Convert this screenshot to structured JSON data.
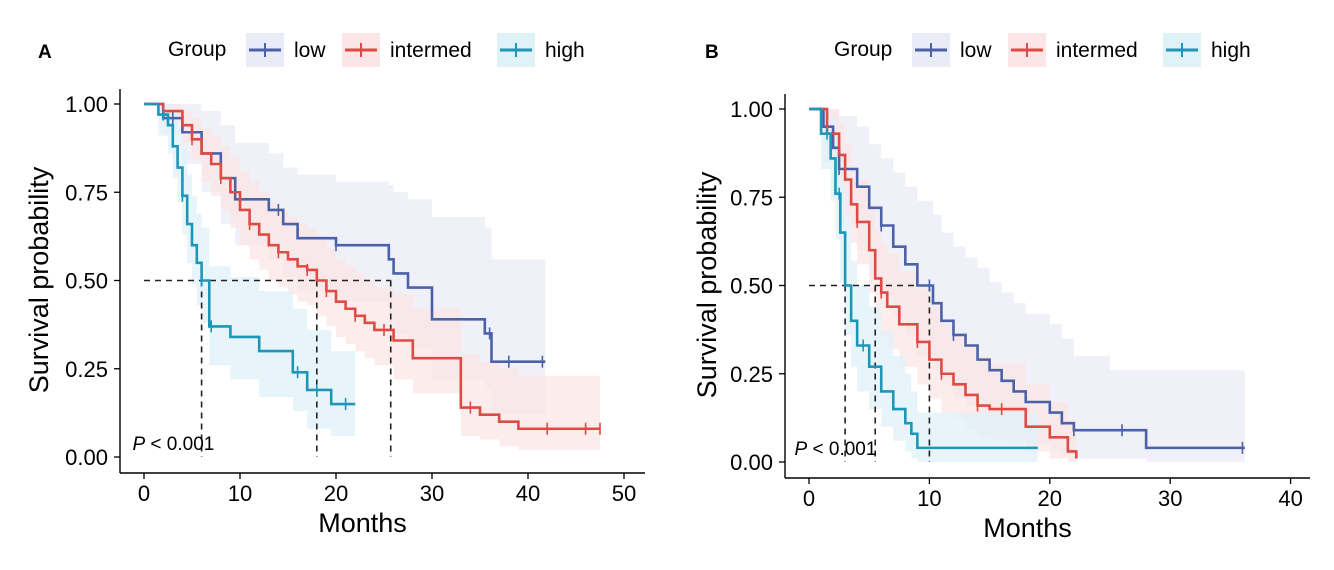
{
  "colors": {
    "low": "#4b62a8",
    "intermed": "#de4b44",
    "high": "#1e96b8",
    "low_band": "#e9ebf6",
    "intermed_band": "#fbe5e6",
    "high_band": "#dff2f8"
  },
  "chart_data": [
    {
      "type": "line",
      "panel_label": "A",
      "legend_title": "Group",
      "legend": [
        "low",
        "intermed",
        "high"
      ],
      "xlabel": "Months",
      "ylabel": "Survival probability",
      "xlim": [
        0,
        50
      ],
      "ylim": [
        0,
        1
      ],
      "xticks": [
        "0",
        "10",
        "20",
        "30",
        "40",
        "50"
      ],
      "yticks": [
        "0.00",
        "0.25",
        "0.50",
        "0.75",
        "1.00"
      ],
      "annotation": "P < 0.001",
      "medians": [
        6,
        18,
        25.7
      ],
      "series": [
        {
          "name": "low",
          "x": [
            0,
            2,
            4,
            6,
            8,
            9.5,
            13,
            14.5,
            16,
            20,
            25.5,
            26,
            27.5,
            30,
            35.5,
            36.2,
            41.8
          ],
          "y": [
            1,
            0.96,
            0.92,
            0.86,
            0.79,
            0.73,
            0.7,
            0.66,
            0.62,
            0.6,
            0.56,
            0.52,
            0.48,
            0.39,
            0.35,
            0.27,
            0.27
          ],
          "lower": [
            1,
            0.92,
            0.83,
            0.75,
            0.66,
            0.6,
            0.56,
            0.51,
            0.47,
            0.44,
            0.38,
            0.35,
            0.31,
            0.22,
            0.19,
            0.12,
            0.12
          ],
          "upper": [
            1,
            1,
            1,
            0.98,
            0.94,
            0.89,
            0.86,
            0.82,
            0.8,
            0.78,
            0.77,
            0.75,
            0.73,
            0.68,
            0.65,
            0.56,
            0.56
          ],
          "censor_x": [
            3,
            10,
            14,
            20,
            36,
            38,
            41.5
          ]
        },
        {
          "name": "intermed",
          "x": [
            0,
            2,
            4,
            5,
            6,
            7,
            8,
            9,
            10,
            11,
            12,
            13,
            14,
            15,
            16,
            17,
            18,
            19,
            20,
            21,
            22,
            23,
            24,
            26,
            28,
            33,
            35,
            37,
            39,
            47.5
          ],
          "y": [
            1,
            0.98,
            0.94,
            0.9,
            0.86,
            0.83,
            0.79,
            0.75,
            0.7,
            0.66,
            0.63,
            0.6,
            0.58,
            0.56,
            0.54,
            0.53,
            0.5,
            0.47,
            0.44,
            0.42,
            0.4,
            0.38,
            0.36,
            0.33,
            0.28,
            0.14,
            0.12,
            0.1,
            0.08,
            0.08
          ],
          "lower": [
            1,
            0.95,
            0.89,
            0.84,
            0.78,
            0.74,
            0.7,
            0.65,
            0.6,
            0.56,
            0.53,
            0.5,
            0.48,
            0.46,
            0.44,
            0.43,
            0.4,
            0.37,
            0.34,
            0.32,
            0.3,
            0.28,
            0.26,
            0.22,
            0.18,
            0.06,
            0.05,
            0.03,
            0.02,
            0.02
          ],
          "upper": [
            1,
            1,
            0.98,
            0.96,
            0.93,
            0.91,
            0.88,
            0.85,
            0.81,
            0.78,
            0.75,
            0.72,
            0.7,
            0.68,
            0.66,
            0.65,
            0.62,
            0.59,
            0.56,
            0.54,
            0.52,
            0.5,
            0.48,
            0.46,
            0.42,
            0.29,
            0.27,
            0.25,
            0.23,
            0.23
          ],
          "censor_x": [
            5,
            8,
            11,
            14,
            17,
            19,
            22,
            25,
            34,
            42,
            46,
            47.5
          ]
        },
        {
          "name": "high",
          "x": [
            0,
            1.5,
            2.5,
            3,
            3.5,
            4,
            4.5,
            5,
            5.5,
            6,
            6.8,
            9,
            12,
            15.5,
            17,
            19.5,
            22
          ],
          "y": [
            1,
            0.97,
            0.94,
            0.88,
            0.82,
            0.74,
            0.66,
            0.6,
            0.55,
            0.5,
            0.37,
            0.34,
            0.3,
            0.24,
            0.19,
            0.15,
            0.15
          ],
          "lower": [
            1,
            0.91,
            0.86,
            0.79,
            0.72,
            0.63,
            0.55,
            0.49,
            0.43,
            0.38,
            0.26,
            0.22,
            0.17,
            0.13,
            0.08,
            0.06,
            0.06
          ],
          "upper": [
            1,
            1,
            1,
            0.98,
            0.93,
            0.87,
            0.8,
            0.74,
            0.69,
            0.65,
            0.54,
            0.51,
            0.47,
            0.42,
            0.36,
            0.3,
            0.3
          ],
          "censor_x": [
            2,
            4,
            6,
            7,
            16,
            18,
            21
          ]
        }
      ]
    },
    {
      "type": "line",
      "panel_label": "B",
      "legend_title": "Group",
      "legend": [
        "low",
        "intermed",
        "high"
      ],
      "xlabel": "Months",
      "ylabel": "Survival probability",
      "xlim": [
        0,
        40
      ],
      "ylim": [
        0,
        1
      ],
      "xticks": [
        "0",
        "10",
        "20",
        "30",
        "40"
      ],
      "yticks": [
        "0.00",
        "0.25",
        "0.50",
        "0.75",
        "1.00"
      ],
      "annotation": "P < 0.001",
      "medians": [
        3,
        5.5,
        10
      ],
      "series": [
        {
          "name": "low",
          "x": [
            0,
            1.2,
            2,
            2.5,
            3,
            4,
            5,
            6,
            7,
            8,
            9,
            10,
            10.3,
            11,
            12,
            13,
            14,
            15,
            16,
            17,
            18,
            20,
            21,
            22,
            25,
            28,
            36.2
          ],
          "y": [
            1,
            0.95,
            0.89,
            0.83,
            0.83,
            0.78,
            0.72,
            0.67,
            0.61,
            0.56,
            0.5,
            0.5,
            0.45,
            0.4,
            0.36,
            0.33,
            0.29,
            0.26,
            0.23,
            0.2,
            0.17,
            0.14,
            0.11,
            0.09,
            0.09,
            0.04,
            0.04
          ],
          "lower": [
            1,
            0.85,
            0.76,
            0.67,
            0.67,
            0.6,
            0.53,
            0.47,
            0.41,
            0.36,
            0.3,
            0.3,
            0.26,
            0.22,
            0.18,
            0.16,
            0.13,
            0.1,
            0.08,
            0.06,
            0.05,
            0.03,
            0.02,
            0.01,
            0.01,
            0,
            0
          ],
          "upper": [
            1,
            1,
            1,
            0.98,
            0.98,
            0.95,
            0.9,
            0.86,
            0.82,
            0.78,
            0.74,
            0.74,
            0.7,
            0.65,
            0.61,
            0.58,
            0.55,
            0.51,
            0.48,
            0.45,
            0.42,
            0.39,
            0.35,
            0.3,
            0.26,
            0.26,
            0.26
          ],
          "censor_x": [
            2.5,
            6,
            10,
            12,
            22,
            26,
            36
          ]
        },
        {
          "name": "intermed",
          "x": [
            0,
            1.5,
            2.5,
            3,
            3.5,
            4,
            5,
            5.5,
            6,
            6.5,
            7.5,
            9,
            10,
            11,
            12,
            13,
            14,
            15,
            18,
            20,
            21.5,
            22.2
          ],
          "y": [
            1,
            0.93,
            0.87,
            0.8,
            0.73,
            0.68,
            0.6,
            0.52,
            0.48,
            0.44,
            0.39,
            0.34,
            0.29,
            0.25,
            0.22,
            0.19,
            0.16,
            0.15,
            0.1,
            0.07,
            0.03,
            0.01
          ],
          "lower": [
            1,
            0.86,
            0.78,
            0.7,
            0.62,
            0.56,
            0.48,
            0.4,
            0.36,
            0.32,
            0.27,
            0.22,
            0.18,
            0.14,
            0.12,
            0.09,
            0.07,
            0.06,
            0.03,
            0.01,
            0,
            0
          ],
          "upper": [
            1,
            1,
            0.96,
            0.9,
            0.84,
            0.8,
            0.73,
            0.66,
            0.62,
            0.59,
            0.54,
            0.49,
            0.44,
            0.39,
            0.36,
            0.33,
            0.3,
            0.28,
            0.22,
            0.17,
            0.12,
            0.12
          ],
          "censor_x": [
            4,
            6,
            9,
            11,
            14,
            16
          ]
        },
        {
          "name": "high",
          "x": [
            0,
            1,
            1.8,
            2.2,
            2.6,
            3,
            3.5,
            4,
            5,
            6,
            7,
            8,
            8.5,
            9,
            10,
            19
          ],
          "y": [
            1,
            0.93,
            0.86,
            0.76,
            0.65,
            0.5,
            0.4,
            0.33,
            0.27,
            0.2,
            0.15,
            0.11,
            0.08,
            0.04,
            0.04,
            0.04
          ],
          "lower": [
            1,
            0.83,
            0.74,
            0.63,
            0.51,
            0.36,
            0.27,
            0.2,
            0.15,
            0.1,
            0.06,
            0.03,
            0.01,
            0,
            0,
            0
          ],
          "upper": [
            1,
            1,
            0.98,
            0.9,
            0.8,
            0.67,
            0.57,
            0.5,
            0.44,
            0.37,
            0.3,
            0.25,
            0.2,
            0.14,
            0.14,
            0.14
          ],
          "censor_x": [
            1.5,
            2.5,
            4.5
          ]
        }
      ]
    }
  ]
}
